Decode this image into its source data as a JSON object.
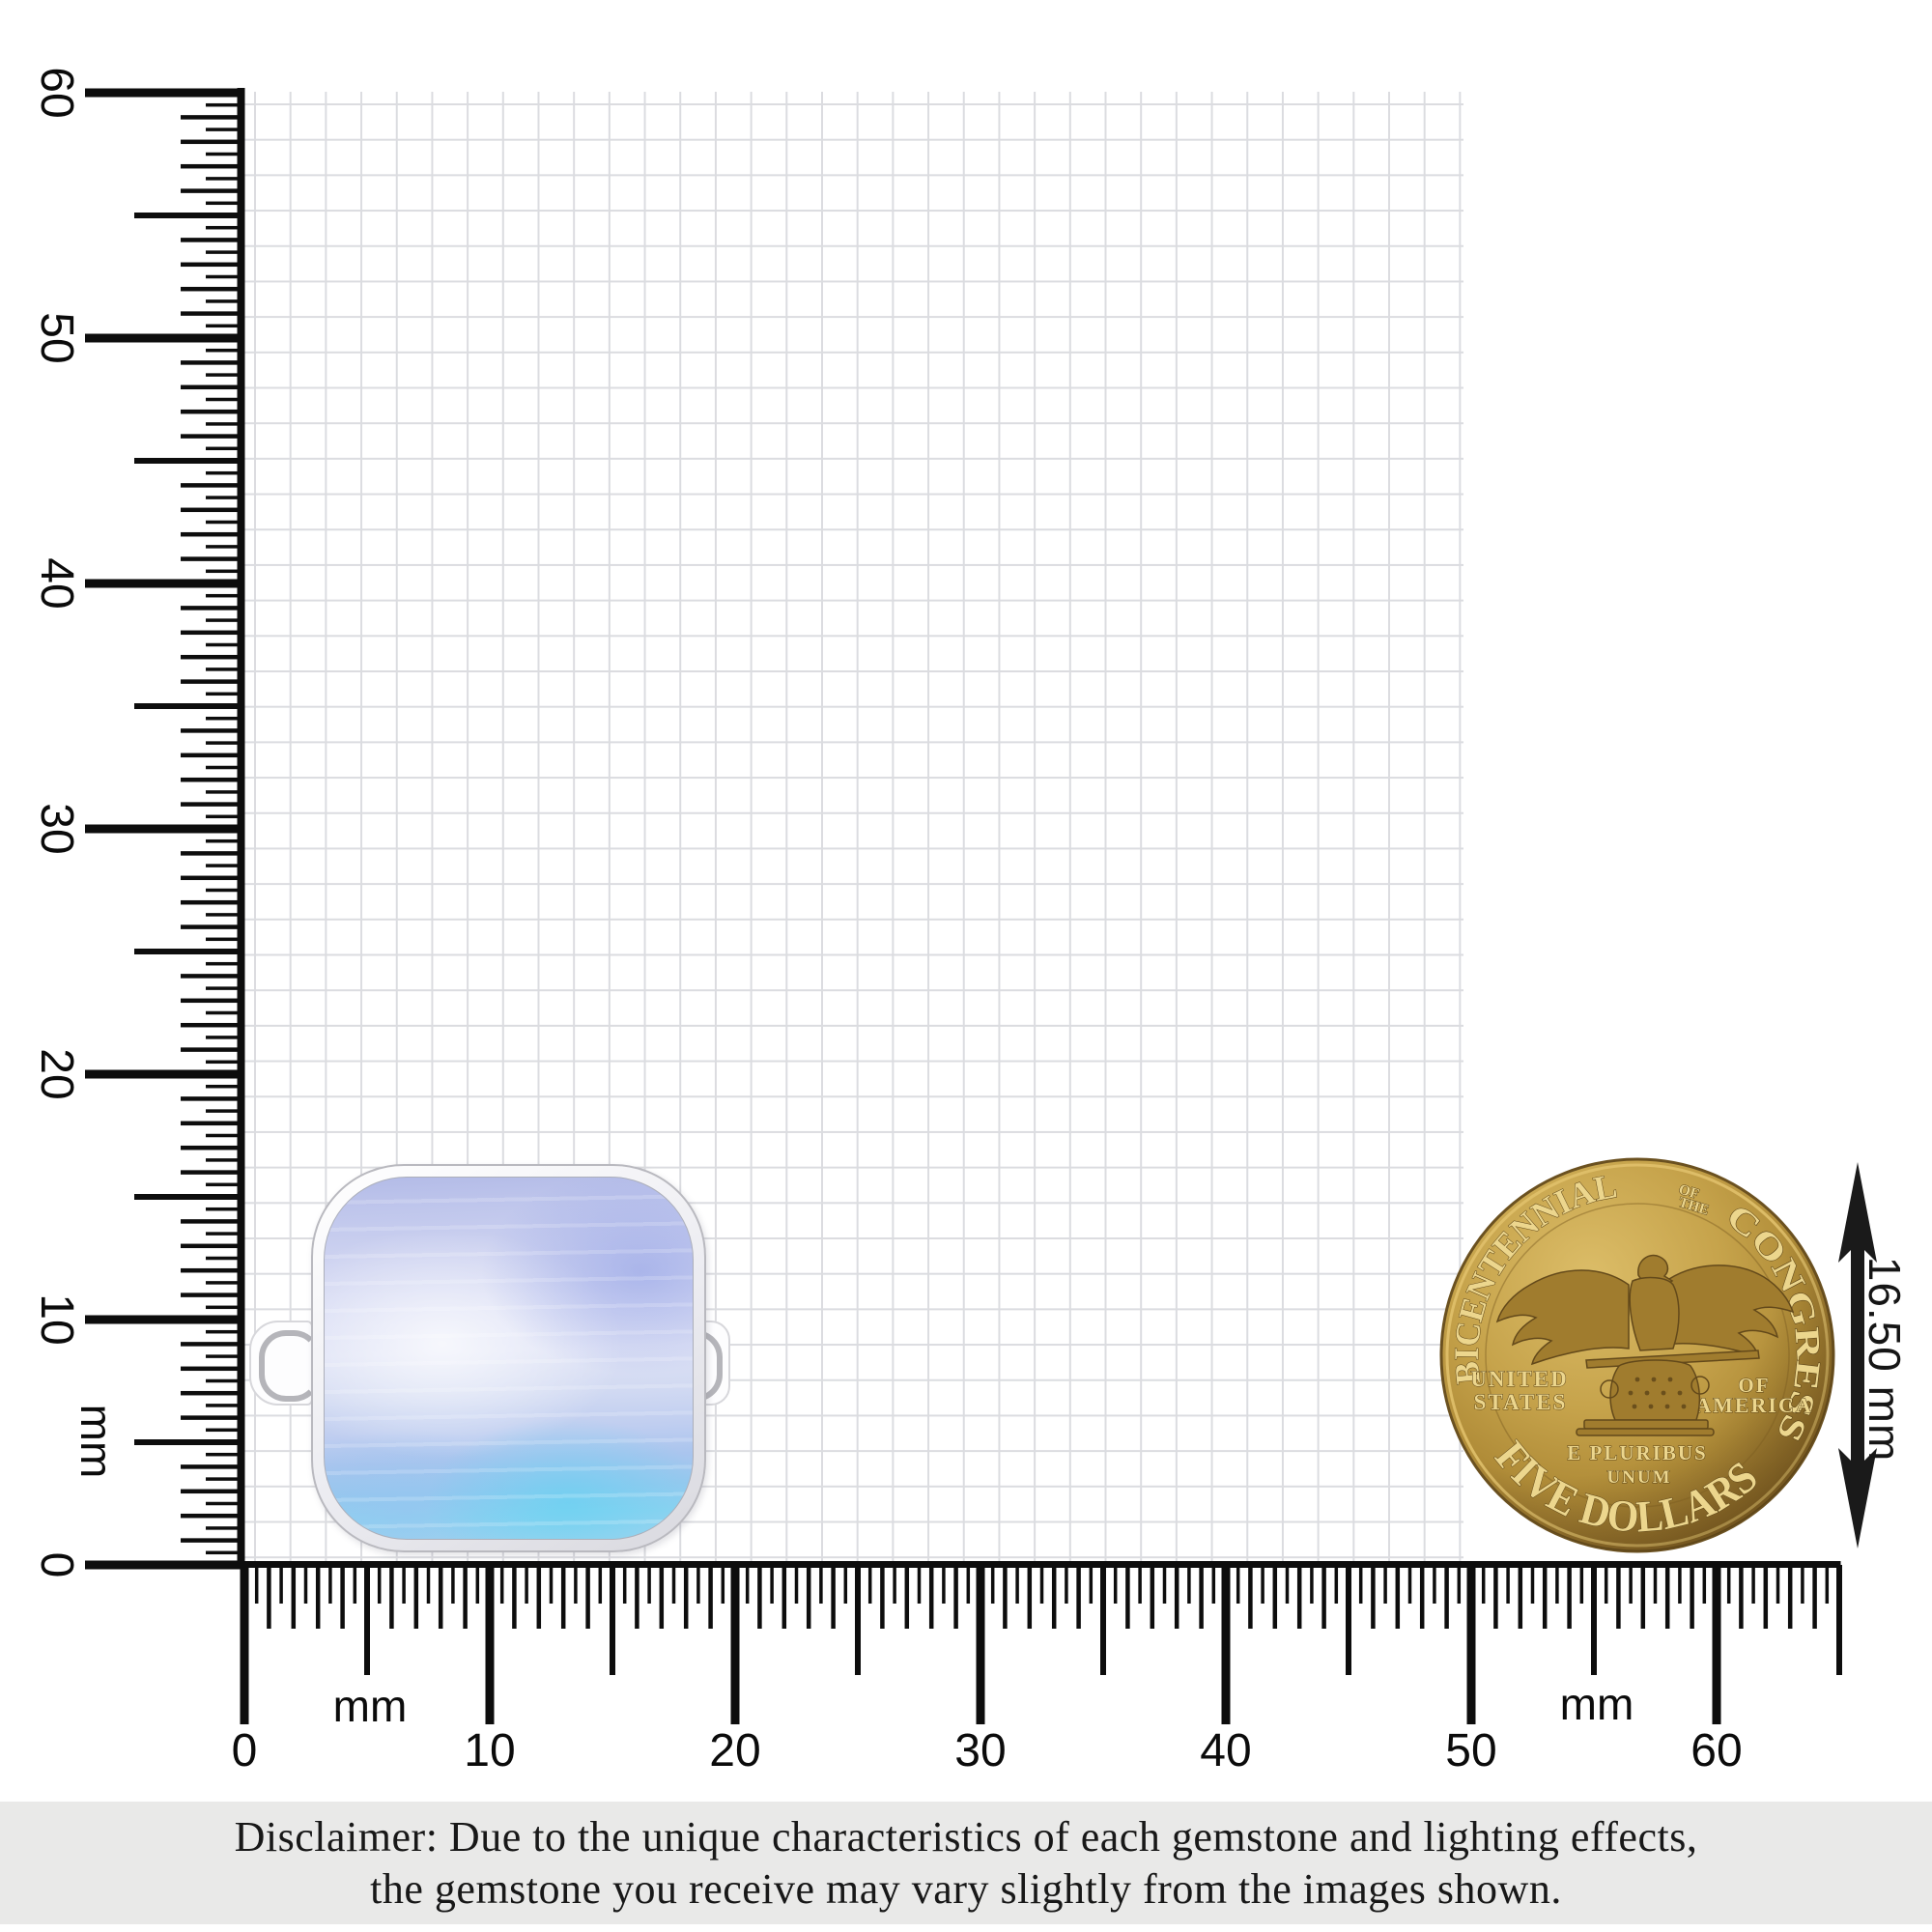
{
  "rulers": {
    "vertical": {
      "tick_labels": [
        "0",
        "10",
        "20",
        "30",
        "40",
        "50",
        "60"
      ],
      "unit_label": "mm"
    },
    "horizontal": {
      "tick_labels": [
        "0",
        "10",
        "20",
        "30",
        "40",
        "50",
        "60"
      ],
      "unit_label_left": "mm",
      "unit_label_right": "mm"
    }
  },
  "measurement": {
    "coin_diameter": "16.50 mm"
  },
  "coin": {
    "arc_top_left": "BICENTENNIAL",
    "arc_top_small": [
      "OF",
      "THE"
    ],
    "arc_top_right": "CONGRESS",
    "left_lines": [
      "UNITED",
      "STATES"
    ],
    "right_lines": [
      "OF",
      "AMERICA"
    ],
    "motto_lines": [
      "E PLURIBUS",
      "UNUM"
    ],
    "arc_bottom": "FIVE DOLLARS"
  },
  "disclaimer": {
    "line1": "Disclaimer: Due to the unique characteristics of each gemstone and lighting effects,",
    "line2": "the gemstone you receive may vary slightly from the images shown."
  },
  "colors": {
    "ruler_black": "#0d0d0d",
    "grid_line": "#dbdce0",
    "coin_gold_light": "#dcbd68",
    "coin_gold": "#c09c44",
    "coin_gold_dark": "#8a682a",
    "coin_text": "#ecd68d",
    "stone_periwinkle": "#b3bbe7",
    "stone_cyan": "#8ed2f0",
    "silver": "#ececf1",
    "disclaimer_bg": "#e9e9e8"
  }
}
